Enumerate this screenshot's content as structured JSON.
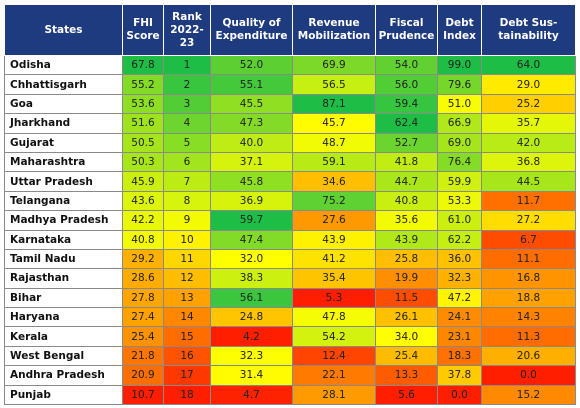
{
  "table": {
    "header": [
      "States",
      "FHI\nScore",
      "Rank\n2022-\n23",
      "Quality of\nExpenditure",
      "Revenue\nMobilization",
      "Fiscal\nPrudence",
      "Debt\nIndex",
      "Debt Sus-\ntainability"
    ],
    "rows": [
      [
        "Odisha",
        "67.8",
        "1",
        "52.0",
        "69.9",
        "54.0",
        "99.0",
        "64.0"
      ],
      [
        "Chhattisgarh",
        "55.2",
        "2",
        "55.1",
        "56.5",
        "56.0",
        "79.6",
        "29.0"
      ],
      [
        "Goa",
        "53.6",
        "3",
        "45.5",
        "87.1",
        "59.4",
        "51.0",
        "25.2"
      ],
      [
        "Jharkhand",
        "51.6",
        "4",
        "47.3",
        "45.7",
        "62.4",
        "66.9",
        "35.7"
      ],
      [
        "Gujarat",
        "50.5",
        "5",
        "40.0",
        "48.7",
        "52.7",
        "69.0",
        "42.0"
      ],
      [
        "Maharashtra",
        "50.3",
        "6",
        "37.1",
        "59.1",
        "41.8",
        "76.4",
        "36.8"
      ],
      [
        "Uttar Pradesh",
        "45.9",
        "7",
        "45.8",
        "34.6",
        "44.7",
        "59.9",
        "44.5"
      ],
      [
        "Telangana",
        "43.6",
        "8",
        "36.9",
        "75.2",
        "40.8",
        "53.3",
        "11.7"
      ],
      [
        "Madhya Pradesh",
        "42.2",
        "9",
        "59.7",
        "27.6",
        "35.6",
        "61.0",
        "27.2"
      ],
      [
        "Karnataka",
        "40.8",
        "10",
        "47.4",
        "43.9",
        "43.9",
        "62.2",
        "6.7"
      ],
      [
        "Tamil Nadu",
        "29.2",
        "11",
        "32.0",
        "41.2",
        "25.8",
        "36.0",
        "11.1"
      ],
      [
        "Rajasthan",
        "28.6",
        "12",
        "38.3",
        "35.4",
        "19.9",
        "32.3",
        "16.8"
      ],
      [
        "Bihar",
        "27.8",
        "13",
        "56.1",
        "5.3",
        "11.5",
        "47.2",
        "18.8"
      ],
      [
        "Haryana",
        "27.4",
        "14",
        "24.8",
        "47.8",
        "26.1",
        "24.1",
        "14.3"
      ],
      [
        "Kerala",
        "25.4",
        "15",
        "4.2",
        "54.2",
        "34.0",
        "23.1",
        "11.3"
      ],
      [
        "West Bengal",
        "21.8",
        "16",
        "32.3",
        "12.4",
        "25.4",
        "18.3",
        "20.6"
      ],
      [
        "Andhra Pradesh",
        "20.9",
        "17",
        "31.4",
        "22.1",
        "13.3",
        "37.8",
        "0.0"
      ],
      [
        "Punjab",
        "10.7",
        "18",
        "4.7",
        "28.1",
        "5.6",
        "0.0",
        "15.2"
      ]
    ]
  }
}
